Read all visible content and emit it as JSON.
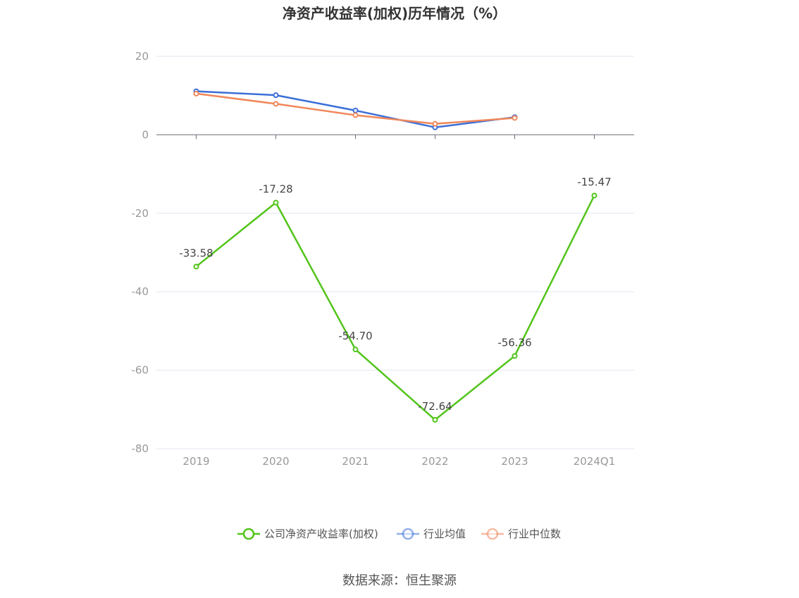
{
  "chart_data": {
    "type": "line",
    "title": "净资产收益率(加权)历年情况（%）",
    "categories": [
      "2019",
      "2020",
      "2021",
      "2022",
      "2023",
      "2024Q1"
    ],
    "ylim": [
      -80,
      20
    ],
    "yticks": [
      "20",
      "0",
      "-20",
      "-40",
      "-60",
      "-80"
    ],
    "grid": true,
    "legend_position": "bottom",
    "series": [
      {
        "name": "公司净资产收益率(加权)",
        "color": "#52c41a",
        "values": [
          -33.58,
          -17.28,
          -54.7,
          -72.64,
          -56.36,
          -15.47
        ],
        "labels": [
          "-33.58",
          "-17.28",
          "-54.70",
          "-72.64",
          "-56.36",
          "-15.47"
        ]
      },
      {
        "name": "行业均值",
        "color": "#3b6fd8",
        "values": [
          11.1,
          10.1,
          6.2,
          1.9,
          4.5,
          null
        ]
      },
      {
        "name": "行业中位数",
        "color": "#f0875a",
        "values": [
          10.5,
          7.9,
          5.0,
          2.8,
          4.3,
          null
        ]
      }
    ],
    "source": "数据来源：恒生聚源"
  }
}
